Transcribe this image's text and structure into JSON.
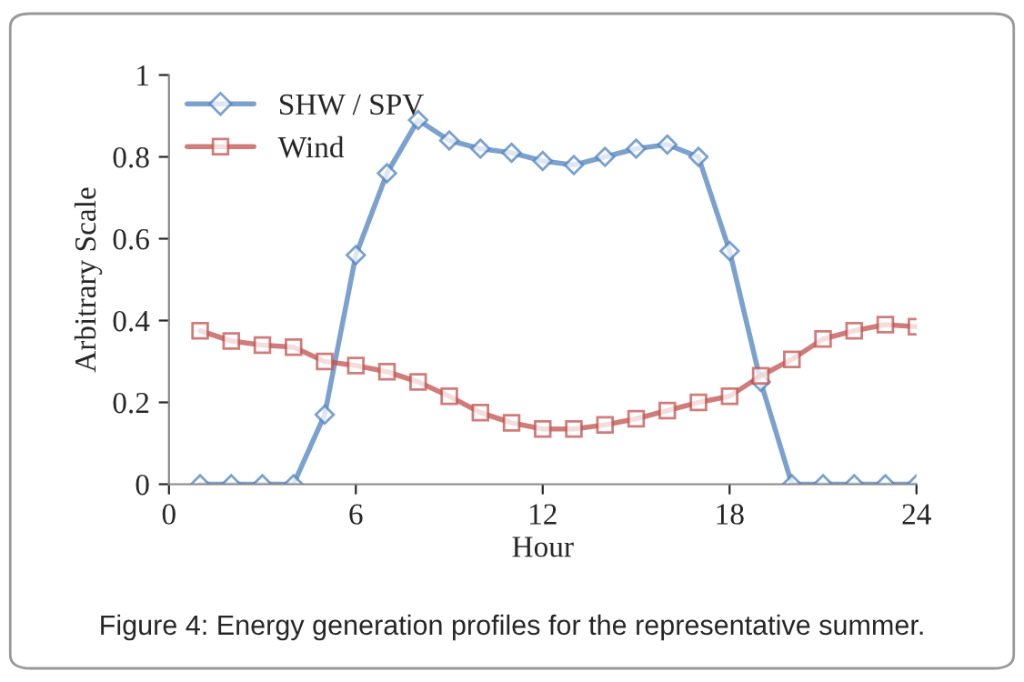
{
  "chart_data": {
    "type": "line",
    "xlabel": "Hour",
    "ylabel": "Arbitrary Scale",
    "x": [
      1,
      2,
      3,
      4,
      5,
      6,
      7,
      8,
      9,
      10,
      11,
      12,
      13,
      14,
      15,
      16,
      17,
      18,
      19,
      20,
      21,
      22,
      23,
      24
    ],
    "series": [
      {
        "name": "SHW / SPV",
        "color": "#4f81bd",
        "marker": "diamond",
        "values": [
          0,
          0,
          0,
          0,
          0.17,
          0.56,
          0.76,
          0.89,
          0.84,
          0.82,
          0.81,
          0.79,
          0.78,
          0.8,
          0.82,
          0.83,
          0.8,
          0.57,
          0.25,
          0,
          0,
          0,
          0,
          0
        ]
      },
      {
        "name": "Wind",
        "color": "#c0504d",
        "marker": "square",
        "values": [
          0.375,
          0.35,
          0.34,
          0.335,
          0.3,
          0.29,
          0.275,
          0.25,
          0.215,
          0.175,
          0.15,
          0.135,
          0.135,
          0.145,
          0.16,
          0.18,
          0.2,
          0.215,
          0.265,
          0.305,
          0.355,
          0.375,
          0.39,
          0.385
        ]
      }
    ],
    "xlim": [
      0,
      24
    ],
    "xticks": [
      0,
      6,
      12,
      18,
      24
    ],
    "ylim": [
      0,
      1
    ],
    "yticks": [
      0,
      0.2,
      0.4,
      0.6,
      0.8,
      1
    ],
    "grid": false,
    "legend": "top left",
    "annotations": [
      "Figure 4: Energy generation profiles for the representative summer."
    ]
  }
}
